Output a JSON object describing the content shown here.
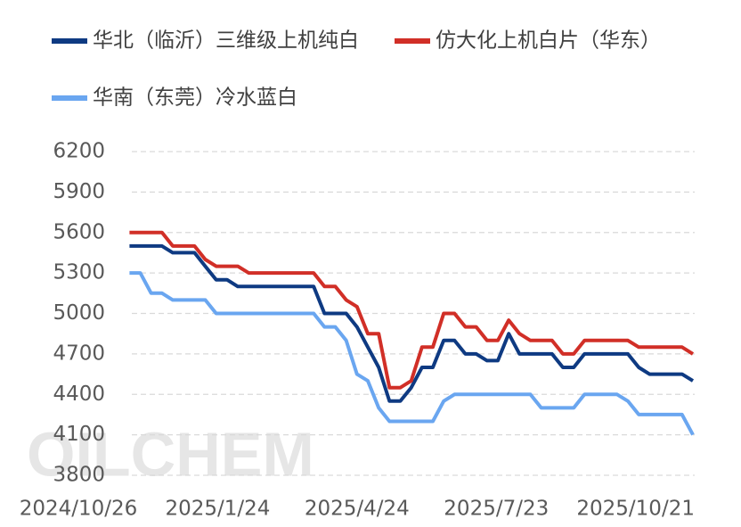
{
  "chart_data": {
    "type": "line",
    "watermark": "OILCHEM",
    "x": [
      "2024/11/28",
      "2024/12/5",
      "2024/12/12",
      "2024/12/19",
      "2024/12/26",
      "2025/1/2",
      "2025/1/9",
      "2025/1/16",
      "2025/1/23",
      "2025/1/30",
      "2025/2/6",
      "2025/2/13",
      "2025/2/20",
      "2025/2/27",
      "2025/3/6",
      "2025/3/13",
      "2025/3/20",
      "2025/3/27",
      "2025/4/3",
      "2025/4/10",
      "2025/4/17",
      "2025/4/24",
      "2025/5/1",
      "2025/5/8",
      "2025/5/15",
      "2025/5/22",
      "2025/5/29",
      "2025/6/5",
      "2025/6/12",
      "2025/6/19",
      "2025/6/26",
      "2025/7/3",
      "2025/7/10",
      "2025/7/17",
      "2025/7/24",
      "2025/7/31",
      "2025/8/7",
      "2025/8/14",
      "2025/8/21",
      "2025/8/28",
      "2025/9/4",
      "2025/9/11",
      "2025/9/18",
      "2025/9/25",
      "2025/10/2",
      "2025/10/9",
      "2025/10/16",
      "2025/10/23",
      "2025/10/30",
      "2025/11/6",
      "2025/11/13",
      "2025/11/20",
      "2025/11/27"
    ],
    "series": [
      {
        "name": "华北（临沂）三维级上机纯白",
        "color": "#0e3a82",
        "values": [
          5500,
          5500,
          5500,
          5500,
          5450,
          5450,
          5450,
          5350,
          5250,
          5250,
          5200,
          5200,
          5200,
          5200,
          5200,
          5200,
          5200,
          5200,
          5000,
          5000,
          5000,
          4900,
          4750,
          4600,
          4350,
          4350,
          4450,
          4600,
          4600,
          4800,
          4800,
          4700,
          4700,
          4650,
          4650,
          4850,
          4700,
          4700,
          4700,
          4700,
          4600,
          4600,
          4700,
          4700,
          4700,
          4700,
          4700,
          4600,
          4550,
          4550,
          4550,
          4550,
          4500
        ]
      },
      {
        "name": "仿大化上机白片（华东）",
        "color": "#d12f27",
        "values": [
          5600,
          5600,
          5600,
          5600,
          5500,
          5500,
          5500,
          5400,
          5350,
          5350,
          5350,
          5300,
          5300,
          5300,
          5300,
          5300,
          5300,
          5300,
          5200,
          5200,
          5100,
          5050,
          4850,
          4850,
          4450,
          4450,
          4500,
          4750,
          4750,
          5000,
          5000,
          4900,
          4900,
          4800,
          4800,
          4950,
          4850,
          4800,
          4800,
          4800,
          4700,
          4700,
          4800,
          4800,
          4800,
          4800,
          4800,
          4750,
          4750,
          4750,
          4750,
          4750,
          4700
        ]
      },
      {
        "name": "华南（东莞）冷水蓝白",
        "color": "#6aa6f0",
        "values": [
          5300,
          5300,
          5150,
          5150,
          5100,
          5100,
          5100,
          5100,
          5000,
          5000,
          5000,
          5000,
          5000,
          5000,
          5000,
          5000,
          5000,
          5000,
          4900,
          4900,
          4800,
          4550,
          4500,
          4300,
          4200,
          4200,
          4200,
          4200,
          4200,
          4350,
          4400,
          4400,
          4400,
          4400,
          4400,
          4400,
          4400,
          4400,
          4300,
          4300,
          4300,
          4300,
          4400,
          4400,
          4400,
          4400,
          4350,
          4250,
          4250,
          4250,
          4250,
          4250,
          4100
        ]
      }
    ],
    "xlim": [
      "2024/10/26",
      "2025/11/27"
    ],
    "xticks": [
      "2024/10/26",
      "2025/1/24",
      "2025/4/24",
      "2025/7/23",
      "2025/10/21"
    ],
    "ylim": [
      3800,
      6200
    ],
    "yticks": [
      3800,
      4100,
      4400,
      4700,
      5000,
      5300,
      5600,
      5900,
      6200
    ],
    "grid": true
  }
}
